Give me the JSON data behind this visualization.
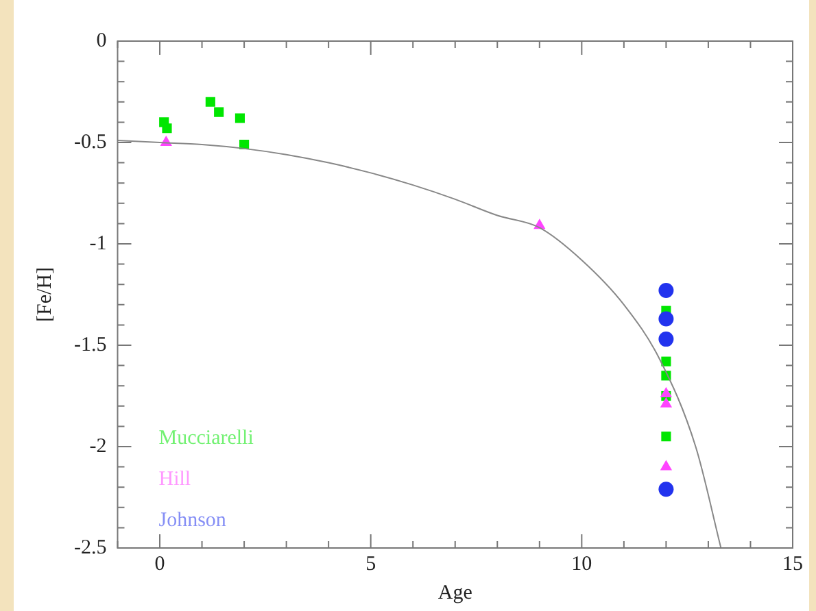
{
  "chart_data": {
    "type": "scatter",
    "xlabel": "Age",
    "ylabel": "[Fe/H]",
    "xlim": [
      -1,
      15
    ],
    "ylim": [
      -2.5,
      0
    ],
    "xticks": [
      {
        "value": -1,
        "label": null
      },
      0,
      {
        "value": 1,
        "label": null
      },
      {
        "value": 2,
        "label": null
      },
      {
        "value": 3,
        "label": null
      },
      {
        "value": 4,
        "label": null
      },
      5,
      {
        "value": 6,
        "label": null
      },
      {
        "value": 7,
        "label": null
      },
      {
        "value": 8,
        "label": null
      },
      {
        "value": 9,
        "label": null
      },
      10,
      {
        "value": 11,
        "label": null
      },
      {
        "value": 12,
        "label": null
      },
      {
        "value": 13,
        "label": null
      },
      {
        "value": 14,
        "label": null
      },
      15
    ],
    "yticks": [
      -2.5,
      {
        "value": -2.4,
        "label": null
      },
      {
        "value": -2.3,
        "label": null
      },
      {
        "value": -2.2,
        "label": null
      },
      {
        "value": -2.1,
        "label": null
      },
      -2,
      {
        "value": -1.9,
        "label": null
      },
      {
        "value": -1.8,
        "label": null
      },
      {
        "value": -1.7,
        "label": null
      },
      {
        "value": -1.6,
        "label": null
      },
      -1.5,
      {
        "value": -1.4,
        "label": null
      },
      {
        "value": -1.3,
        "label": null
      },
      {
        "value": -1.2,
        "label": null
      },
      {
        "value": -1.1,
        "label": null
      },
      -1,
      {
        "value": -0.9,
        "label": null
      },
      {
        "value": -0.8,
        "label": null
      },
      {
        "value": -0.7,
        "label": null
      },
      {
        "value": -0.6,
        "label": null
      },
      -0.5,
      {
        "value": -0.4,
        "label": null
      },
      {
        "value": -0.3,
        "label": null
      },
      {
        "value": -0.2,
        "label": null
      },
      {
        "value": -0.1,
        "label": null
      },
      0
    ],
    "grid": false,
    "legend": "bottom left",
    "series": [
      {
        "name": "Mucciarelli",
        "color": "#00e600",
        "marker": "square",
        "x": [
          0.1,
          0.17,
          1.2,
          1.4,
          1.9,
          2.0,
          12,
          12,
          12,
          12,
          12
        ],
        "values": [
          -0.4,
          -0.43,
          -0.3,
          -0.35,
          -0.38,
          -0.51,
          -1.33,
          -1.58,
          -1.65,
          -1.75,
          -1.95
        ]
      },
      {
        "name": "Hill",
        "color": "#ff44ff",
        "marker": "triangle",
        "x": [
          0.15,
          9,
          12,
          12,
          12
        ],
        "values": [
          -0.5,
          -0.91,
          -1.74,
          -1.79,
          -2.1
        ]
      },
      {
        "name": "Johnson",
        "color": "#2233ee",
        "marker": "circle",
        "x": [
          12,
          12,
          12,
          12
        ],
        "values": [
          -1.23,
          -1.37,
          -1.47,
          -2.21
        ]
      },
      {
        "type": "line",
        "color": "#888888",
        "marker": "none",
        "line_style": "solid",
        "x": [
          -1,
          0,
          1,
          2,
          3,
          4,
          5,
          6,
          7,
          8,
          9,
          10,
          11,
          11.85,
          12.7,
          13.3
        ],
        "values": [
          -0.49,
          -0.5,
          -0.51,
          -0.53,
          -0.56,
          -0.6,
          -0.65,
          -0.71,
          -0.78,
          -0.86,
          -0.92,
          -1.08,
          -1.3,
          -1.57,
          -2.0,
          -2.5
        ]
      }
    ]
  }
}
